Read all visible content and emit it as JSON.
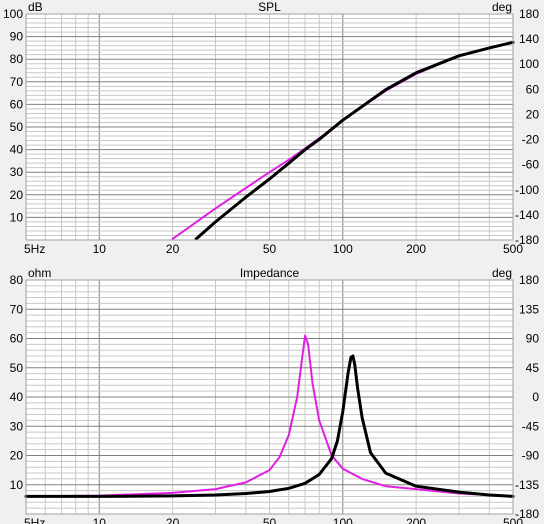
{
  "colors": {
    "background": "#f0f0f0",
    "plot_background": "#ffffff",
    "grid_major": "#808080",
    "grid_minor": "#c8c8c8",
    "series_black": "#000000",
    "series_magenta": "#e020e0"
  },
  "chart_data": [
    {
      "type": "line",
      "title": "SPL",
      "xscale": "log",
      "xlim": [
        5,
        500
      ],
      "x_tick_labels": [
        {
          "value": 5,
          "label": "5Hz"
        },
        {
          "value": 10,
          "label": "10"
        },
        {
          "value": 20,
          "label": "20"
        },
        {
          "value": 50,
          "label": "50"
        },
        {
          "value": 100,
          "label": "100"
        },
        {
          "value": 200,
          "label": "200"
        },
        {
          "value": 500,
          "label": "500"
        }
      ],
      "y_left_unit": "dB",
      "y_left_lim": [
        0,
        100
      ],
      "y_left_ticks": [
        "100",
        "90",
        "80",
        "70",
        "60",
        "50",
        "40",
        "30",
        "20",
        "10"
      ],
      "y_right_unit": "deg",
      "y_right_lim": [
        -180,
        180
      ],
      "y_right_ticks": [
        "180",
        "140",
        "100",
        "60",
        "20",
        "-20",
        "-60",
        "-100",
        "-140",
        "-180"
      ],
      "grid": true,
      "series": [
        {
          "color": "#e020e0",
          "x": [
            20,
            30,
            40,
            50,
            60,
            70,
            80,
            100,
            150,
            200,
            300,
            400,
            500
          ],
          "y": [
            0.5,
            14,
            23,
            30,
            35.5,
            40.5,
            45,
            53,
            66,
            73.5,
            81.5,
            85,
            87.5
          ]
        },
        {
          "color": "#000000",
          "x": [
            25,
            30,
            40,
            50,
            60,
            70,
            80,
            100,
            150,
            200,
            300,
            400,
            500
          ],
          "y": [
            0.5,
            8,
            19,
            27,
            34,
            40,
            44.5,
            53,
            66.5,
            74,
            81.5,
            85,
            87.5
          ]
        }
      ]
    },
    {
      "type": "line",
      "title": "Impedance",
      "xscale": "log",
      "xlim": [
        5,
        500
      ],
      "x_tick_labels": [
        {
          "value": 5,
          "label": "5Hz"
        },
        {
          "value": 10,
          "label": "10"
        },
        {
          "value": 20,
          "label": "20"
        },
        {
          "value": 50,
          "label": "50"
        },
        {
          "value": 100,
          "label": "100"
        },
        {
          "value": 200,
          "label": "200"
        },
        {
          "value": 500,
          "label": "500"
        }
      ],
      "y_left_unit": "ohm",
      "y_left_lim": [
        0,
        80
      ],
      "y_left_ticks": [
        "80",
        "70",
        "60",
        "50",
        "40",
        "30",
        "20",
        "10"
      ],
      "y_right_unit": "deg",
      "y_right_lim": [
        -180,
        180
      ],
      "y_right_ticks": [
        "180",
        "135",
        "90",
        "45",
        "0",
        "-45",
        "-90",
        "-135",
        "-180"
      ],
      "grid": true,
      "series": [
        {
          "color": "#e020e0",
          "x": [
            5,
            10,
            20,
            30,
            40,
            50,
            55,
            60,
            65,
            68,
            70,
            72,
            75,
            80,
            90,
            100,
            120,
            150,
            200,
            300,
            400,
            500
          ],
          "y": [
            6,
            6.3,
            7.2,
            8.5,
            10.8,
            15,
            19.5,
            27,
            40,
            53,
            61,
            58,
            45,
            32,
            20,
            15.5,
            12,
            9.5,
            8.5,
            7,
            6.5,
            6
          ]
        },
        {
          "color": "#000000",
          "x": [
            5,
            10,
            20,
            30,
            40,
            50,
            60,
            70,
            80,
            90,
            95,
            100,
            105,
            108,
            110,
            112,
            115,
            120,
            130,
            150,
            200,
            300,
            400,
            500
          ],
          "y": [
            6,
            6,
            6.2,
            6.5,
            7,
            7.7,
            8.8,
            10.5,
            13.5,
            19,
            25,
            35,
            48,
            53.5,
            54,
            51,
            43,
            33,
            21,
            14,
            9.5,
            7.5,
            6.5,
            6
          ]
        }
      ]
    }
  ]
}
